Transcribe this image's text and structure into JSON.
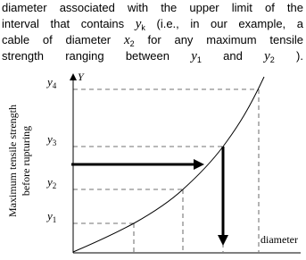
{
  "paragraph": {
    "lines": [
      [
        {
          "text": "diameter associated with the upper limit of the"
        }
      ],
      [
        {
          "text": "interval that contains"
        },
        {
          "var": "y",
          "sub": "k"
        },
        {
          "text": "(i.e., in our example, a"
        }
      ],
      [
        {
          "text": "cable of diameter"
        },
        {
          "var": "x",
          "sub": "2"
        },
        {
          "text": "for any maximum tensile"
        }
      ],
      [
        {
          "text": "strength ranging between"
        },
        {
          "var": "y",
          "sub": "1"
        },
        {
          "text": "and"
        },
        {
          "var": "y",
          "sub": "2"
        },
        {
          "text": ")."
        }
      ]
    ]
  },
  "figure": {
    "y_axis_symbol": "Y",
    "y_axis_title": [
      "Maximum tensile strength",
      "before rupturing"
    ],
    "x_axis_label": "diameter",
    "y_levels": [
      {
        "var": "y",
        "sub": "1"
      },
      {
        "var": "y",
        "sub": "2"
      },
      {
        "var": "y",
        "sub": "3"
      },
      {
        "var": "y",
        "sub": "4"
      }
    ]
  }
}
